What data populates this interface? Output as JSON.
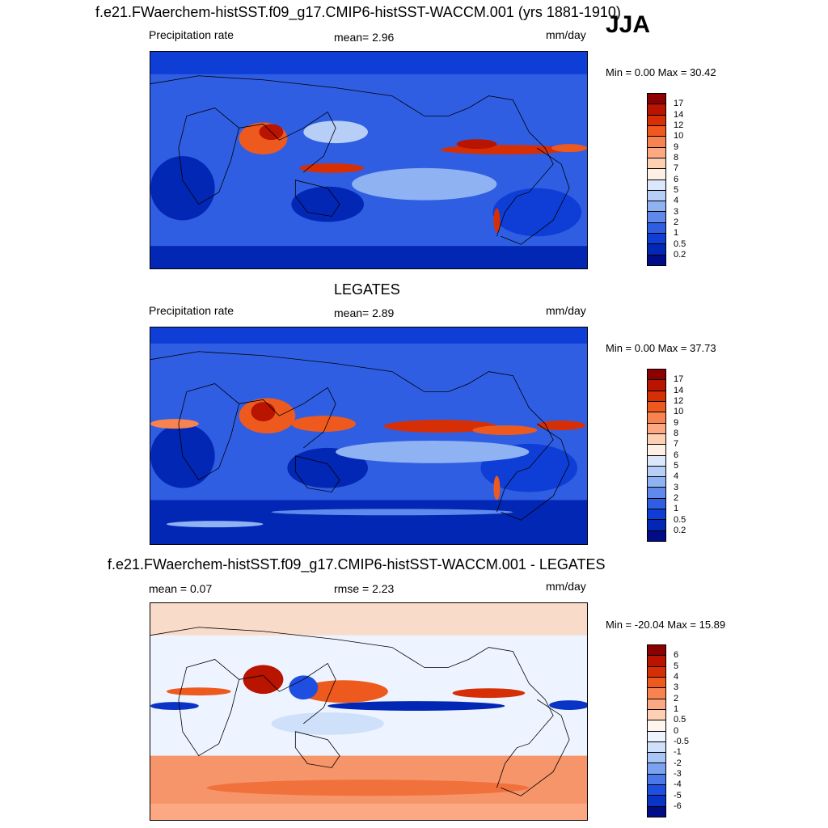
{
  "season": "JJA",
  "colors": {
    "precip_scale": [
      "#8c0000",
      "#b81400",
      "#d62f06",
      "#ee5a1e",
      "#f78350",
      "#fba883",
      "#fdd0b3",
      "#fef0e4",
      "#dbe8fb",
      "#b7cff7",
      "#8fb2f2",
      "#5f89eb",
      "#2f5ee3",
      "#0f3ed6",
      "#0327b5",
      "#000c88"
    ],
    "diff_scale": [
      "#8c0000",
      "#b81400",
      "#d62f06",
      "#ee5a1e",
      "#f78350",
      "#fba883",
      "#fdd0b3",
      "#fff5ee",
      "#eef4ff",
      "#cfe0fb",
      "#a9c5f6",
      "#7ba2ef",
      "#4a78e8",
      "#1f4fe0",
      "#0a34c6",
      "#000c88"
    ]
  },
  "panels": [
    {
      "id": "model",
      "title": "f.e21.FWaerchem-histSST.f09_g17.CMIP6-histSST-WACCM.001 (yrs 1881-1910)",
      "left_label": "Precipitation rate",
      "center_label": "mean=   2.96",
      "units": "mm/day",
      "minmax": "Min =   0.00 Max =  30.42",
      "colorbar_ticks": [
        "17",
        "14",
        "12",
        "10",
        "9",
        "8",
        "7",
        "6",
        "5",
        "4",
        "3",
        "2",
        "1",
        "0.5",
        "0.2"
      ]
    },
    {
      "id": "obs",
      "title": "LEGATES",
      "left_label": "Precipitation rate",
      "center_label": "mean=   2.89",
      "units": "mm/day",
      "minmax": "Min =   0.00 Max =  37.73",
      "colorbar_ticks": [
        "17",
        "14",
        "12",
        "10",
        "9",
        "8",
        "7",
        "6",
        "5",
        "4",
        "3",
        "2",
        "1",
        "0.5",
        "0.2"
      ]
    },
    {
      "id": "diff",
      "title": "f.e21.FWaerchem-histSST.f09_g17.CMIP6-histSST-WACCM.001 - LEGATES",
      "left_label": "mean =   0.07",
      "center_label": "rmse =   2.23",
      "units": "mm/day",
      "minmax": "Min = -20.04 Max =  15.89",
      "colorbar_ticks": [
        "6",
        "5",
        "4",
        "3",
        "2",
        "1",
        "0.5",
        "0",
        "-0.5",
        "-1",
        "-2",
        "-3",
        "-4",
        "-5",
        "-6"
      ]
    }
  ]
}
